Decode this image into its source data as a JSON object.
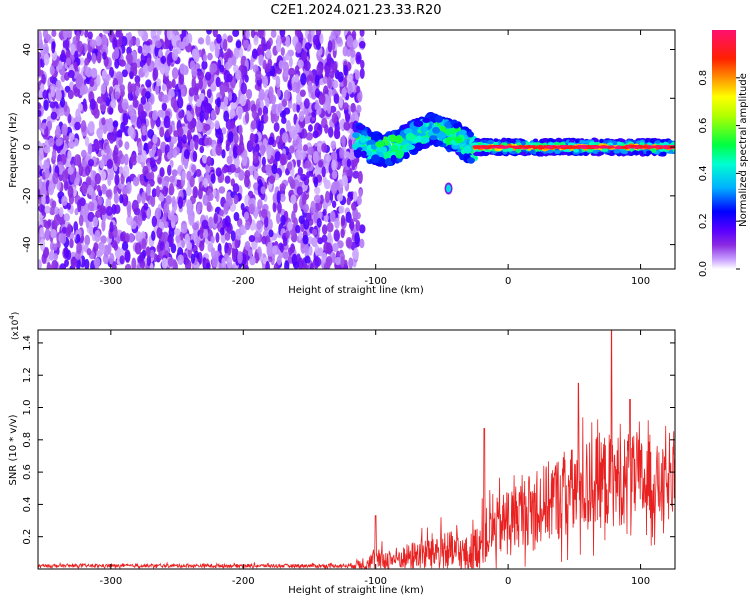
{
  "title": "C2E1.2024.021.23.33.R20",
  "colors": {
    "snr_line": "#e82020",
    "axis": "#000000",
    "background": "#ffffff"
  },
  "chart_data": [
    {
      "type": "heatmap",
      "xlabel": "Height of straight line (km)",
      "ylabel": "Frequency (Hz)",
      "xlim": [
        -355,
        126
      ],
      "ylim": [
        -50,
        48
      ],
      "x_ticks": [
        -300,
        -200,
        -100,
        0,
        100
      ],
      "y_ticks": [
        -40,
        -20,
        0,
        20,
        40
      ],
      "colorbar": {
        "label": "Normalized spectral amplitude",
        "range": [
          0,
          1
        ],
        "ticks": [
          "0.0",
          "0.2",
          "0.4",
          "0.6",
          "0.8"
        ],
        "colormap": [
          "#ffffff",
          "#c8a0ff",
          "#8a2be2",
          "#5a00ff",
          "#0000ff",
          "#00d8ff",
          "#00ff40",
          "#ffff00",
          "#ff8000",
          "#ff0000",
          "#ff1070"
        ]
      },
      "regions": [
        {
          "name": "noise",
          "x_range": [
            -355,
            -110
          ],
          "freq_range": [
            -50,
            48
          ],
          "amplitude": [
            0.0,
            0.15
          ]
        },
        {
          "name": "transition",
          "x_range": [
            -115,
            -25
          ],
          "freq_center": 3,
          "freq_halfwidth": 6,
          "amplitude": [
            0.3,
            0.55
          ]
        },
        {
          "name": "signal",
          "x_range": [
            -25,
            126
          ],
          "freq_center": 0,
          "freq_halfwidth": 3,
          "amplitude": [
            0.9,
            1.0
          ]
        },
        {
          "name": "spot",
          "x": -45,
          "freq": -17,
          "amplitude": 0.4
        }
      ]
    },
    {
      "type": "line",
      "xlabel": "Height of straight line (km)",
      "ylabel": "SNR (10 * v/v)",
      "y_multiplier": "(x10",
      "y_multiplier_exp": "4",
      "y_multiplier_close": ")",
      "xlim": [
        -355,
        126
      ],
      "ylim": [
        0,
        1.48
      ],
      "x_ticks": [
        -300,
        -200,
        -100,
        0,
        100
      ],
      "y_ticks": [
        "0.2",
        "0.4",
        "0.6",
        "0.8",
        "1.0",
        "1.2",
        "1.4"
      ],
      "series": [
        {
          "color": "#e82020",
          "envelope": [
            {
              "x": -355,
              "base": 0.02,
              "spread": 0.015
            },
            {
              "x": -120,
              "base": 0.02,
              "spread": 0.02
            },
            {
              "x": -100,
              "base": 0.05,
              "spread": 0.12
            },
            {
              "x": -80,
              "base": 0.07,
              "spread": 0.12
            },
            {
              "x": -50,
              "base": 0.12,
              "spread": 0.22
            },
            {
              "x": -30,
              "base": 0.08,
              "spread": 0.2
            },
            {
              "x": -15,
              "base": 0.22,
              "spread": 0.3
            },
            {
              "x": 10,
              "base": 0.35,
              "spread": 0.35
            },
            {
              "x": 40,
              "base": 0.45,
              "spread": 0.45
            },
            {
              "x": 70,
              "base": 0.55,
              "spread": 0.5
            },
            {
              "x": 100,
              "base": 0.55,
              "spread": 0.45
            },
            {
              "x": 126,
              "base": 0.5,
              "spread": 0.35
            }
          ],
          "peaks": [
            {
              "x": -100,
              "y": 0.33
            },
            {
              "x": -18,
              "y": 0.87
            },
            {
              "x": 53,
              "y": 1.15
            },
            {
              "x": 78,
              "y": 1.48
            },
            {
              "x": 92,
              "y": 1.05
            }
          ]
        }
      ]
    }
  ]
}
